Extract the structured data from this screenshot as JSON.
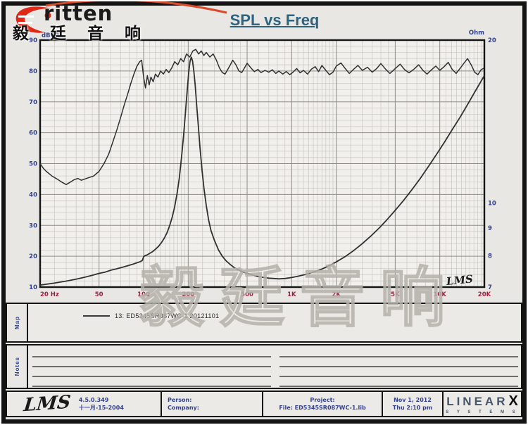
{
  "brand": {
    "logo_text": "ritten",
    "logo_cn": "毅 廷 音 响"
  },
  "title": "SPL vs Freq",
  "watermark": "毅廷音响",
  "chart_data": {
    "type": "line",
    "title": "SPL vs Freq",
    "x_axis": {
      "scale": "log",
      "min": 20,
      "max": 20000,
      "unit": "Hz",
      "tick_values": [
        20,
        50,
        100,
        200,
        500,
        1000,
        2000,
        5000,
        10000,
        20000
      ],
      "tick_labels": [
        "20 Hz",
        "50",
        "100",
        "200",
        "500",
        "1K",
        "2K",
        "5K",
        "10K",
        "20K"
      ]
    },
    "y_axis_left": {
      "label": "dBSPL",
      "min": 10,
      "max": 90,
      "tick_values": [
        90,
        80,
        70,
        60,
        50,
        40,
        30,
        20,
        10
      ]
    },
    "y_axis_right": {
      "label": "Ohm",
      "scale": "log",
      "min": 7,
      "max": 20,
      "tick_values": [
        20,
        10,
        9,
        8,
        7
      ]
    },
    "grid": true,
    "legend_position": "map-section",
    "signature": "LMS",
    "series": [
      {
        "name": "13: ED5345SR087WC-1 20121101 (SPL)",
        "axis": "left",
        "unit": "dBSPL",
        "points": [
          [
            20,
            50
          ],
          [
            21,
            48.5
          ],
          [
            22,
            47.5
          ],
          [
            24,
            46
          ],
          [
            26,
            45
          ],
          [
            28,
            44
          ],
          [
            30,
            43.2
          ],
          [
            32,
            44
          ],
          [
            34,
            44.8
          ],
          [
            36,
            45.2
          ],
          [
            38,
            44.6
          ],
          [
            40,
            45
          ],
          [
            43,
            45.5
          ],
          [
            46,
            46
          ],
          [
            50,
            47.5
          ],
          [
            54,
            50
          ],
          [
            58,
            53
          ],
          [
            62,
            57
          ],
          [
            66,
            61
          ],
          [
            70,
            65
          ],
          [
            74,
            69
          ],
          [
            78,
            72.5
          ],
          [
            82,
            76
          ],
          [
            86,
            79
          ],
          [
            90,
            81.5
          ],
          [
            94,
            83
          ],
          [
            97,
            83.5
          ],
          [
            100,
            78
          ],
          [
            103,
            74.5
          ],
          [
            106,
            78.5
          ],
          [
            109,
            75.5
          ],
          [
            112,
            78
          ],
          [
            116,
            76.5
          ],
          [
            120,
            79
          ],
          [
            125,
            78
          ],
          [
            130,
            80
          ],
          [
            136,
            79
          ],
          [
            142,
            80.5
          ],
          [
            148,
            79.5
          ],
          [
            155,
            81
          ],
          [
            162,
            83
          ],
          [
            170,
            82
          ],
          [
            178,
            84
          ],
          [
            186,
            83
          ],
          [
            195,
            85.5
          ],
          [
            205,
            84.5
          ],
          [
            215,
            86.5
          ],
          [
            225,
            87
          ],
          [
            235,
            85.5
          ],
          [
            245,
            86.5
          ],
          [
            255,
            85
          ],
          [
            265,
            86
          ],
          [
            280,
            84.5
          ],
          [
            295,
            85.5
          ],
          [
            310,
            83.5
          ],
          [
            325,
            81
          ],
          [
            340,
            79.5
          ],
          [
            355,
            79
          ],
          [
            370,
            80.5
          ],
          [
            385,
            82
          ],
          [
            400,
            83.5
          ],
          [
            420,
            82
          ],
          [
            440,
            80
          ],
          [
            460,
            79.5
          ],
          [
            480,
            81
          ],
          [
            500,
            82.5
          ],
          [
            530,
            81
          ],
          [
            560,
            79.8
          ],
          [
            590,
            80.5
          ],
          [
            620,
            79.5
          ],
          [
            660,
            80.2
          ],
          [
            700,
            79.6
          ],
          [
            740,
            80.4
          ],
          [
            780,
            79.2
          ],
          [
            820,
            80
          ],
          [
            870,
            79
          ],
          [
            920,
            79.8
          ],
          [
            970,
            78.8
          ],
          [
            1020,
            79.6
          ],
          [
            1080,
            80.8
          ],
          [
            1140,
            79.4
          ],
          [
            1200,
            80.2
          ],
          [
            1280,
            79
          ],
          [
            1360,
            80.6
          ],
          [
            1440,
            81.4
          ],
          [
            1520,
            79.8
          ],
          [
            1600,
            81.8
          ],
          [
            1700,
            80.2
          ],
          [
            1800,
            78.8
          ],
          [
            1900,
            79.6
          ],
          [
            2000,
            81.6
          ],
          [
            2150,
            82.6
          ],
          [
            2300,
            80.8
          ],
          [
            2450,
            79.2
          ],
          [
            2600,
            80.4
          ],
          [
            2800,
            81.8
          ],
          [
            3000,
            80.2
          ],
          [
            3250,
            81.2
          ],
          [
            3500,
            79.6
          ],
          [
            3750,
            80.8
          ],
          [
            4000,
            82.4
          ],
          [
            4300,
            80.6
          ],
          [
            4600,
            79.2
          ],
          [
            5000,
            80.8
          ],
          [
            5400,
            82.2
          ],
          [
            5800,
            80.4
          ],
          [
            6200,
            79.4
          ],
          [
            6700,
            80.6
          ],
          [
            7200,
            82
          ],
          [
            7700,
            80.2
          ],
          [
            8200,
            79
          ],
          [
            8800,
            80.4
          ],
          [
            9400,
            81.6
          ],
          [
            10000,
            80.2
          ],
          [
            10700,
            81.4
          ],
          [
            11400,
            82.8
          ],
          [
            12100,
            80.6
          ],
          [
            12900,
            79.2
          ],
          [
            13700,
            80.8
          ],
          [
            14500,
            82.4
          ],
          [
            15400,
            84
          ],
          [
            16300,
            82
          ],
          [
            17200,
            79.6
          ],
          [
            18100,
            78.8
          ],
          [
            19000,
            80.4
          ],
          [
            20000,
            81
          ]
        ]
      },
      {
        "name": "13: ED5345SR087WC-1 20121101 (Impedance)",
        "axis": "right",
        "unit": "Ohm",
        "points": [
          [
            20,
            7.06
          ],
          [
            25,
            7.12
          ],
          [
            30,
            7.18
          ],
          [
            35,
            7.24
          ],
          [
            40,
            7.3
          ],
          [
            45,
            7.36
          ],
          [
            50,
            7.42
          ],
          [
            55,
            7.46
          ],
          [
            60,
            7.52
          ],
          [
            65,
            7.56
          ],
          [
            70,
            7.6
          ],
          [
            75,
            7.64
          ],
          [
            80,
            7.68
          ],
          [
            85,
            7.72
          ],
          [
            90,
            7.76
          ],
          [
            95,
            7.8
          ],
          [
            98,
            7.84
          ],
          [
            100,
            7.96
          ],
          [
            102,
            8.0
          ],
          [
            105,
            8.02
          ],
          [
            110,
            8.08
          ],
          [
            115,
            8.14
          ],
          [
            120,
            8.22
          ],
          [
            126,
            8.32
          ],
          [
            132,
            8.46
          ],
          [
            138,
            8.62
          ],
          [
            144,
            8.82
          ],
          [
            150,
            9.1
          ],
          [
            156,
            9.42
          ],
          [
            162,
            9.85
          ],
          [
            168,
            10.4
          ],
          [
            174,
            11.1
          ],
          [
            180,
            12.1
          ],
          [
            186,
            13.3
          ],
          [
            192,
            14.8
          ],
          [
            197,
            16.2
          ],
          [
            202,
            17.5
          ],
          [
            206,
            18.3
          ],
          [
            210,
            18.6
          ],
          [
            214,
            18.3
          ],
          [
            218,
            17.6
          ],
          [
            223,
            16.5
          ],
          [
            228,
            15.2
          ],
          [
            234,
            13.9
          ],
          [
            240,
            12.7
          ],
          [
            248,
            11.5
          ],
          [
            256,
            10.6
          ],
          [
            265,
            9.9
          ],
          [
            275,
            9.3
          ],
          [
            285,
            8.9
          ],
          [
            300,
            8.55
          ],
          [
            320,
            8.2
          ],
          [
            340,
            7.98
          ],
          [
            360,
            7.83
          ],
          [
            385,
            7.7
          ],
          [
            410,
            7.6
          ],
          [
            440,
            7.52
          ],
          [
            470,
            7.46
          ],
          [
            500,
            7.42
          ],
          [
            550,
            7.36
          ],
          [
            600,
            7.32
          ],
          [
            650,
            7.29
          ],
          [
            700,
            7.27
          ],
          [
            760,
            7.26
          ],
          [
            820,
            7.25
          ],
          [
            900,
            7.26
          ],
          [
            1000,
            7.29
          ],
          [
            1100,
            7.33
          ],
          [
            1250,
            7.39
          ],
          [
            1400,
            7.46
          ],
          [
            1600,
            7.56
          ],
          [
            1800,
            7.67
          ],
          [
            2000,
            7.79
          ],
          [
            2300,
            7.97
          ],
          [
            2600,
            8.16
          ],
          [
            3000,
            8.42
          ],
          [
            3400,
            8.68
          ],
          [
            3900,
            9.0
          ],
          [
            4400,
            9.32
          ],
          [
            5000,
            9.7
          ],
          [
            5700,
            10.12
          ],
          [
            6500,
            10.6
          ],
          [
            7400,
            11.12
          ],
          [
            8400,
            11.7
          ],
          [
            9500,
            12.3
          ],
          [
            10800,
            12.98
          ],
          [
            12200,
            13.7
          ],
          [
            13800,
            14.45
          ],
          [
            15600,
            15.3
          ],
          [
            17600,
            16.2
          ],
          [
            20000,
            17.2
          ]
        ]
      }
    ]
  },
  "map_section": {
    "label": "Map",
    "legend": "13: ED5345SR087WC-1 20121101"
  },
  "notes_section": {
    "label": "Notes"
  },
  "footer": {
    "lms_logo": "LMS",
    "version": "4.5.0.349",
    "version_date": "十一月-15-2004",
    "person_label": "Person:",
    "company_label": "Company:",
    "project_label": "Project:",
    "file_label": "File: ED5345SR087WC-1.lib",
    "date": "Nov 1, 2012",
    "time": "Thu 2:10 pm",
    "linearx_name": "LINEAR",
    "linearx_x": "X",
    "linearx_sub": "S Y S T E M S"
  },
  "colors": {
    "axis_blue": "#32418c",
    "freq_red": "#a21f44",
    "title_teal": "#2f6480",
    "curve": "#303030",
    "grid_minor": "#c9c7c1",
    "grid_major": "#8f8c85",
    "logo_red": "#e02718",
    "watermark_gray": "#b5b1ab"
  }
}
